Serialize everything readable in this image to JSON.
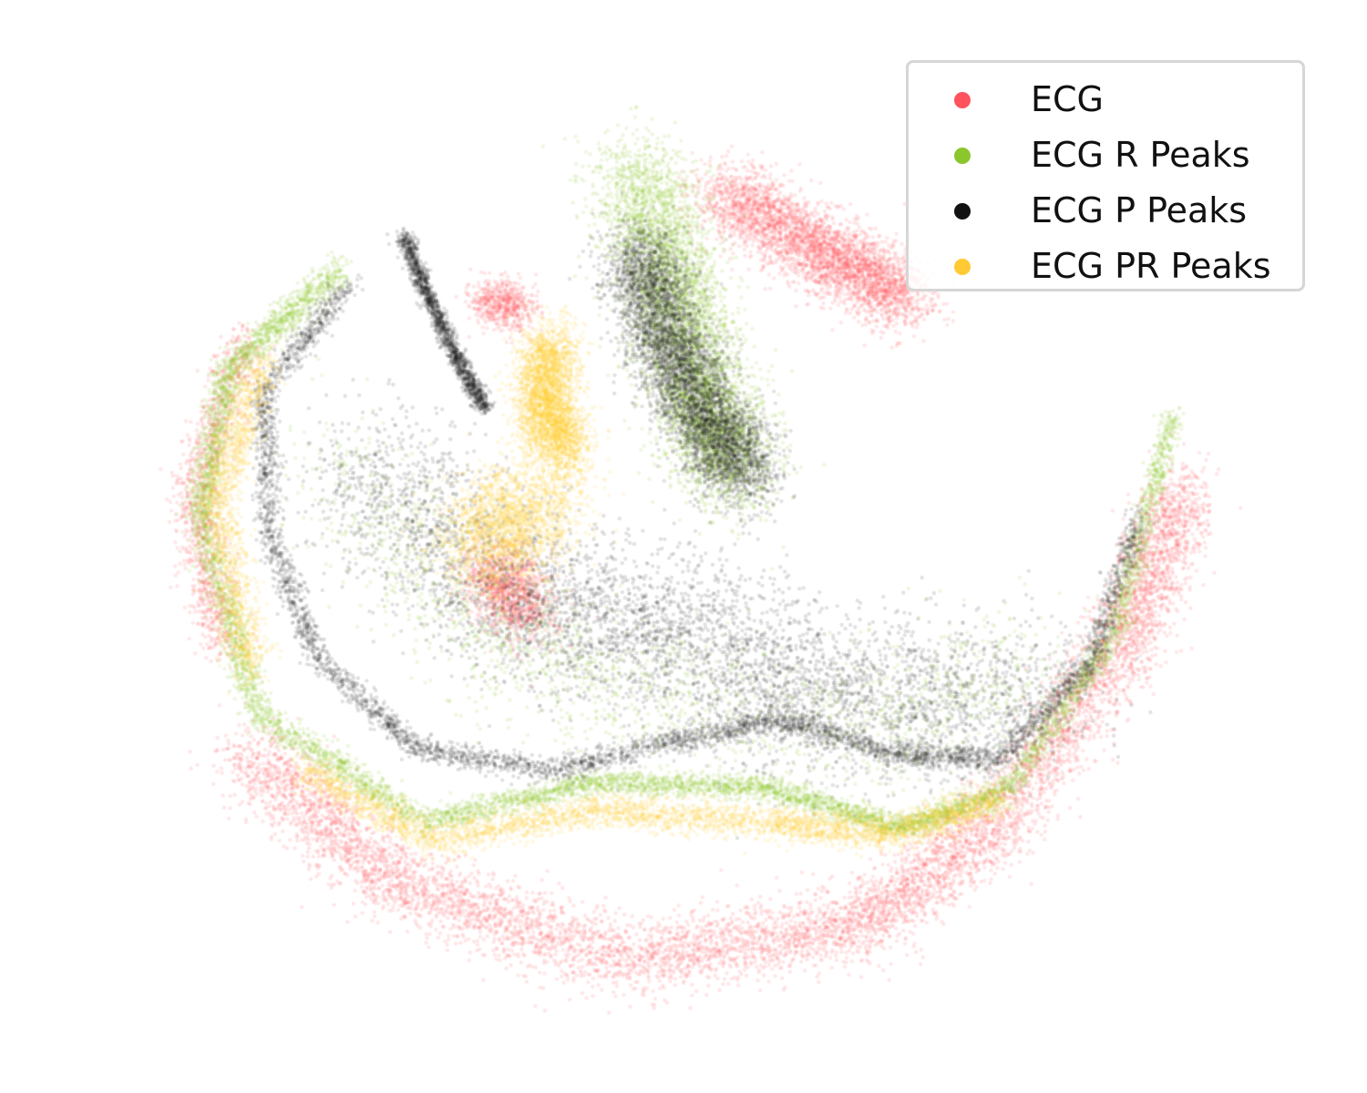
{
  "chart_data": {
    "type": "scatter",
    "title": "",
    "xlabel": "",
    "ylabel": "",
    "axes_visible": false,
    "grid": false,
    "legend_position": "top-right",
    "x_range": [
      -10,
      10
    ],
    "y_range": [
      -8,
      8
    ],
    "series": [
      {
        "name": "ECG",
        "color": "#ff525c",
        "point_count": 14000,
        "clusters": [
          {
            "region": "bottom-arc",
            "path": [
              [
                -7.6,
                -3.5
              ],
              [
                -5,
                -5.8
              ],
              [
                -1,
                -7.2
              ],
              [
                3,
                -6.6
              ],
              [
                5.4,
                -4.8
              ],
              [
                7.6,
                -1.6
              ],
              [
                8.6,
                1.0
              ]
            ],
            "spread": 0.55,
            "weight": 0.55
          },
          {
            "region": "top-right-lobe",
            "path": [
              [
                0.6,
                6.2
              ],
              [
                2.4,
                5.1
              ],
              [
                3.9,
                4.3
              ]
            ],
            "spread": 0.55,
            "weight": 0.25
          },
          {
            "region": "small-top-blob",
            "path": [
              [
                -3.4,
                4.3
              ],
              [
                -2.8,
                4.1
              ]
            ],
            "spread": 0.35,
            "weight": 0.04
          },
          {
            "region": "center-faint",
            "path": [
              [
                -3.3,
                -0.4
              ],
              [
                -2.7,
                -1.2
              ]
            ],
            "spread": 0.55,
            "weight": 0.08
          },
          {
            "region": "outer-left-rim",
            "path": [
              [
                -7.5,
                3.6
              ],
              [
                -8.4,
                1.0
              ],
              [
                -7.9,
                -1.8
              ]
            ],
            "spread": 0.35,
            "weight": 0.08
          }
        ]
      },
      {
        "name": "ECG R Peaks",
        "color": "#8cc62d",
        "point_count": 14000,
        "clusters": [
          {
            "region": "upper-wedge",
            "path": [
              [
                -0.8,
                6.6
              ],
              [
                -0.2,
                4.6
              ],
              [
                0.3,
                2.6
              ],
              [
                0.9,
                1.2
              ]
            ],
            "spread": 0.75,
            "weight": 0.35
          },
          {
            "region": "left-rim-band",
            "path": [
              [
                -5.9,
                4.8
              ],
              [
                -7.8,
                3.1
              ],
              [
                -8.3,
                0.5
              ],
              [
                -7.3,
                -2.9
              ],
              [
                -4.6,
                -4.7
              ]
            ],
            "spread": 0.22,
            "weight": 0.22
          },
          {
            "region": "bottom-band",
            "path": [
              [
                -4.5,
                -4.8
              ],
              [
                -1.5,
                -4.1
              ],
              [
                1.4,
                -4.2
              ],
              [
                3.8,
                -4.9
              ],
              [
                5.6,
                -4.2
              ],
              [
                7.4,
                -1.5
              ],
              [
                8.4,
                2.3
              ]
            ],
            "spread": 0.18,
            "weight": 0.3
          },
          {
            "region": "interior-mix",
            "path": [
              [
                -6,
                1.5
              ],
              [
                -3.5,
                -1.5
              ],
              [
                -1,
                -2.5
              ],
              [
                3,
                -3.2
              ],
              [
                6,
                -2.2
              ]
            ],
            "spread": 1.1,
            "weight": 0.13
          }
        ]
      },
      {
        "name": "ECG P Peaks",
        "color": "#111111",
        "point_count": 16000,
        "clusters": [
          {
            "region": "upper-wedge-core",
            "path": [
              [
                -0.8,
                5.2
              ],
              [
                -0.3,
                3.6
              ],
              [
                0.4,
                2.2
              ],
              [
                1.1,
                1.2
              ]
            ],
            "spread": 0.6,
            "weight": 0.32
          },
          {
            "region": "inner-arc",
            "path": [
              [
                -5.7,
                4.6
              ],
              [
                -7.2,
                2.7
              ],
              [
                -7.1,
                0.2
              ],
              [
                -6.3,
                -1.9
              ],
              [
                -4.6,
                -3.5
              ],
              [
                -2.3,
                -3.9
              ],
              [
                -0.2,
                -3.4
              ],
              [
                1.7,
                -3.0
              ],
              [
                3.6,
                -3.6
              ],
              [
                5.4,
                -3.7
              ],
              [
                7.0,
                -2.0
              ],
              [
                7.8,
                0.5
              ]
            ],
            "spread": 0.18,
            "weight": 0.28
          },
          {
            "region": "interior-scatter",
            "path": [
              [
                -5.5,
                1.5
              ],
              [
                -3,
                -1
              ],
              [
                0,
                -1.5
              ],
              [
                2.5,
                -2.8
              ],
              [
                6.2,
                -2.5
              ]
            ],
            "spread": 1.2,
            "weight": 0.3
          },
          {
            "region": "diagonal-streak",
            "path": [
              [
                -4.8,
                5.4
              ],
              [
                -4.4,
                4.4
              ],
              [
                -3.9,
                3.3
              ],
              [
                -3.4,
                2.4
              ]
            ],
            "spread": 0.12,
            "weight": 0.1
          }
        ]
      },
      {
        "name": "ECG PR Peaks",
        "color": "#ffca33",
        "point_count": 10000,
        "clusters": [
          {
            "region": "wedge-left-flank",
            "path": [
              [
                -2.3,
                3.6
              ],
              [
                -2.4,
                2.4
              ],
              [
                -2.0,
                1.6
              ]
            ],
            "spread": 0.45,
            "weight": 0.3
          },
          {
            "region": "bottom-yellow-band",
            "path": [
              [
                -6.5,
                -3.9
              ],
              [
                -4.3,
                -5.1
              ],
              [
                -1.5,
                -4.6
              ],
              [
                1.5,
                -4.8
              ],
              [
                3.5,
                -5.0
              ],
              [
                5.4,
                -4.4
              ]
            ],
            "spread": 0.25,
            "weight": 0.35
          },
          {
            "region": "center-diffuse",
            "path": [
              [
                -3.6,
                0
              ],
              [
                -2.4,
                0.8
              ]
            ],
            "spread": 0.8,
            "weight": 0.2
          },
          {
            "region": "left-rim",
            "path": [
              [
                -7.2,
                3.2
              ],
              [
                -8,
                0.8
              ],
              [
                -7.4,
                -2.2
              ]
            ],
            "spread": 0.3,
            "weight": 0.15
          }
        ]
      }
    ]
  }
}
